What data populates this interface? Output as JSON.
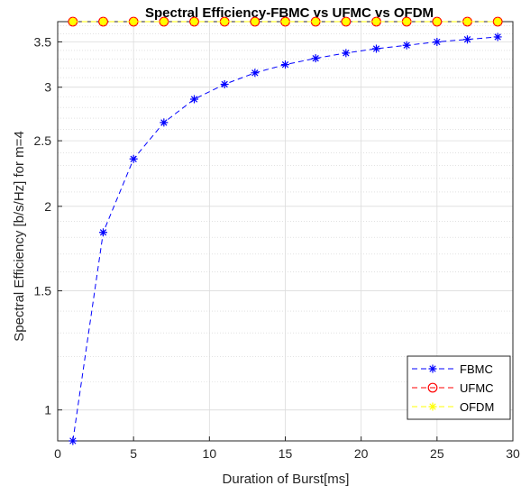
{
  "chart_data": {
    "type": "line",
    "title": "Spectral Efficiency-FBMC vs UFMC vs OFDM",
    "xlabel": "Duration of Burst[ms]",
    "ylabel": "Spectral Efficiency [b/s/Hz] for m=4",
    "xlim": [
      0,
      30
    ],
    "ylim": [
      0.9,
      3.75
    ],
    "yscale": "log",
    "grid": true,
    "minor_grid": true,
    "legend_position": "bottom-right",
    "x_ticks": [
      0,
      5,
      10,
      15,
      20,
      25,
      30
    ],
    "x_tick_labels": [
      "0",
      "5",
      "10",
      "15",
      "20",
      "25",
      "30"
    ],
    "y_ticks": [
      1,
      1.5,
      2,
      2.5,
      3,
      3.5
    ],
    "y_tick_labels": [
      "1",
      "1.5",
      "2",
      "2.5",
      "3",
      "3.5"
    ],
    "x": [
      1,
      3,
      5,
      7,
      9,
      11,
      13,
      15,
      17,
      19,
      21,
      23,
      25,
      27,
      29
    ],
    "series": [
      {
        "name": "FBMC",
        "color": "#0000ff",
        "line_style": "dashed",
        "marker": "asterisk",
        "values": [
          0.9,
          1.83,
          2.35,
          2.66,
          2.88,
          3.03,
          3.15,
          3.24,
          3.31,
          3.37,
          3.42,
          3.46,
          3.5,
          3.53,
          3.56
        ]
      },
      {
        "name": "UFMC",
        "color": "#ff0000",
        "line_style": "dashed",
        "marker": "circle",
        "values": [
          3.75,
          3.75,
          3.75,
          3.75,
          3.75,
          3.75,
          3.75,
          3.75,
          3.75,
          3.75,
          3.75,
          3.75,
          3.75,
          3.75,
          3.75
        ]
      },
      {
        "name": "OFDM",
        "color": "#ffff00",
        "line_style": "dashed",
        "marker": "asterisk",
        "values": [
          3.75,
          3.75,
          3.75,
          3.75,
          3.75,
          3.75,
          3.75,
          3.75,
          3.75,
          3.75,
          3.75,
          3.75,
          3.75,
          3.75,
          3.75
        ]
      }
    ]
  }
}
